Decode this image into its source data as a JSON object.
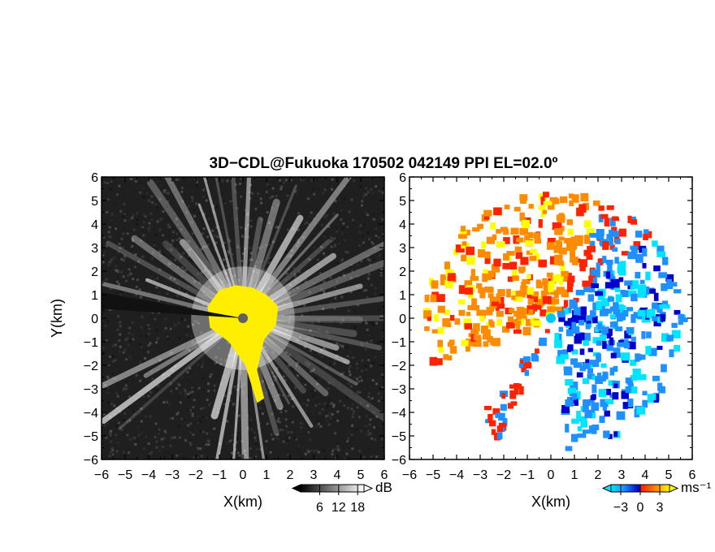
{
  "title": "3D−CDL@Fukuoka 170502 042149 PPI EL=02.0º",
  "chart_data": [
    {
      "type": "heatmap",
      "panel": "left",
      "variable": "reflectivity",
      "xlabel": "X(km)",
      "ylabel": "Y(km)",
      "xlim": [
        -6,
        6
      ],
      "ylim": [
        -6,
        6
      ],
      "x_ticks": [
        "−6",
        "−5",
        "−4",
        "−3",
        "−2",
        "−1",
        "0",
        "1",
        "2",
        "3",
        "4",
        "5",
        "6"
      ],
      "y_ticks": [
        "6",
        "5",
        "4",
        "3",
        "2",
        "1",
        "0",
        "−1",
        "−2",
        "−3",
        "−4",
        "−5",
        "−6"
      ],
      "colorbar": {
        "label": "dB",
        "ticks": [
          "6",
          "12",
          "18"
        ],
        "tick_values": [
          6,
          12,
          18
        ],
        "range": [
          0,
          20
        ],
        "colors": [
          "#000000",
          "#ffffff"
        ]
      },
      "saturated_color": "#ffee00",
      "radar_site": [
        0,
        0
      ],
      "site_marker_color": "#606060"
    },
    {
      "type": "heatmap",
      "panel": "right",
      "variable": "doppler_velocity",
      "xlabel": "X(km)",
      "xlim": [
        -6,
        6
      ],
      "ylim": [
        -6,
        6
      ],
      "x_ticks": [
        "−6",
        "−5",
        "−4",
        "−3",
        "−2",
        "−1",
        "0",
        "1",
        "2",
        "3",
        "4",
        "5",
        "6"
      ],
      "y_ticks": [
        "6",
        "5",
        "4",
        "3",
        "2",
        "1",
        "0",
        "−1",
        "−2",
        "−3",
        "−4",
        "−5",
        "−6"
      ],
      "colorbar": {
        "label": "ms⁻¹",
        "ticks": [
          "−3",
          "0",
          "3"
        ],
        "tick_values": [
          -3,
          0,
          3
        ],
        "range": [
          -4.5,
          4.5
        ],
        "colors": [
          "#00e5ff",
          "#1e90ff",
          "#0000cd",
          "#ff2200",
          "#ff8c00",
          "#ffff00"
        ]
      },
      "radar_site": [
        0,
        0
      ],
      "site_marker_color": "#00c8ff"
    }
  ]
}
